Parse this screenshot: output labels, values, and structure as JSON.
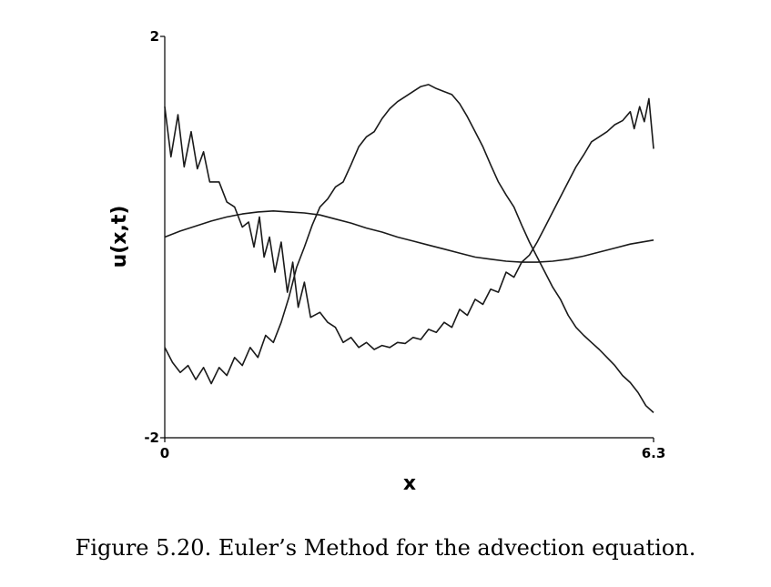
{
  "caption": "Figure 5.20. Euler’s Method for the advection equation.",
  "chart_data": {
    "type": "line",
    "xlabel": "x",
    "ylabel": "u(x,t)",
    "xlim": [
      0,
      6.3
    ],
    "ylim": [
      -2,
      2
    ],
    "x_tick_labels": [
      "0",
      "6.3"
    ],
    "y_tick_labels": [
      "2",
      "-2"
    ],
    "x_ticks": [
      0,
      6.3
    ],
    "y_ticks": [
      2,
      -2
    ],
    "grid": false,
    "series": [
      {
        "points": [
          [
            0,
            0.0
          ],
          [
            0.2,
            0.06
          ],
          [
            0.4,
            0.11
          ],
          [
            0.6,
            0.16
          ],
          [
            0.8,
            0.2
          ],
          [
            1.0,
            0.23
          ],
          [
            1.2,
            0.25
          ],
          [
            1.4,
            0.26
          ],
          [
            1.6,
            0.25
          ],
          [
            1.8,
            0.24
          ],
          [
            2.0,
            0.22
          ],
          [
            2.2,
            0.18
          ],
          [
            2.4,
            0.14
          ],
          [
            2.6,
            0.09
          ],
          [
            2.8,
            0.05
          ],
          [
            3.0,
            0.0
          ],
          [
            3.2,
            -0.04
          ],
          [
            3.4,
            -0.08
          ],
          [
            3.6,
            -0.12
          ],
          [
            3.8,
            -0.16
          ],
          [
            4.0,
            -0.2
          ],
          [
            4.2,
            -0.22
          ],
          [
            4.4,
            -0.24
          ],
          [
            4.6,
            -0.25
          ],
          [
            4.8,
            -0.25
          ],
          [
            5.0,
            -0.24
          ],
          [
            5.2,
            -0.22
          ],
          [
            5.4,
            -0.19
          ],
          [
            5.6,
            -0.15
          ],
          [
            5.8,
            -0.11
          ],
          [
            6.0,
            -0.07
          ],
          [
            6.3,
            -0.03
          ]
        ]
      },
      {
        "points": [
          [
            0,
            1.3
          ],
          [
            0.08,
            0.8
          ],
          [
            0.17,
            1.22
          ],
          [
            0.25,
            0.7
          ],
          [
            0.34,
            1.05
          ],
          [
            0.42,
            0.68
          ],
          [
            0.5,
            0.85
          ],
          [
            0.58,
            0.55
          ],
          [
            0.7,
            0.55
          ],
          [
            0.8,
            0.35
          ],
          [
            0.9,
            0.3
          ],
          [
            1.0,
            0.1
          ],
          [
            1.08,
            0.15
          ],
          [
            1.15,
            -0.1
          ],
          [
            1.22,
            0.2
          ],
          [
            1.28,
            -0.2
          ],
          [
            1.35,
            0.0
          ],
          [
            1.42,
            -0.35
          ],
          [
            1.5,
            -0.05
          ],
          [
            1.58,
            -0.55
          ],
          [
            1.65,
            -0.25
          ],
          [
            1.72,
            -0.7
          ],
          [
            1.8,
            -0.45
          ],
          [
            1.88,
            -0.8
          ],
          [
            2.0,
            -0.75
          ],
          [
            2.1,
            -0.85
          ],
          [
            2.2,
            -0.9
          ],
          [
            2.3,
            -1.05
          ],
          [
            2.4,
            -1.0
          ],
          [
            2.5,
            -1.1
          ],
          [
            2.6,
            -1.05
          ],
          [
            2.7,
            -1.12
          ],
          [
            2.8,
            -1.08
          ],
          [
            2.9,
            -1.1
          ],
          [
            3.0,
            -1.05
          ],
          [
            3.1,
            -1.06
          ],
          [
            3.2,
            -1.0
          ],
          [
            3.3,
            -1.02
          ],
          [
            3.4,
            -0.92
          ],
          [
            3.5,
            -0.95
          ],
          [
            3.6,
            -0.85
          ],
          [
            3.7,
            -0.9
          ],
          [
            3.8,
            -0.72
          ],
          [
            3.9,
            -0.78
          ],
          [
            4.0,
            -0.62
          ],
          [
            4.1,
            -0.67
          ],
          [
            4.2,
            -0.52
          ],
          [
            4.3,
            -0.55
          ],
          [
            4.4,
            -0.35
          ],
          [
            4.5,
            -0.4
          ],
          [
            4.6,
            -0.25
          ],
          [
            4.7,
            -0.18
          ],
          [
            4.8,
            -0.05
          ],
          [
            4.9,
            0.1
          ],
          [
            5.0,
            0.25
          ],
          [
            5.1,
            0.4
          ],
          [
            5.2,
            0.55
          ],
          [
            5.3,
            0.7
          ],
          [
            5.4,
            0.82
          ],
          [
            5.5,
            0.95
          ],
          [
            5.6,
            1.0
          ],
          [
            5.7,
            1.05
          ],
          [
            5.8,
            1.12
          ],
          [
            5.9,
            1.16
          ],
          [
            6.0,
            1.25
          ],
          [
            6.05,
            1.08
          ],
          [
            6.12,
            1.3
          ],
          [
            6.18,
            1.15
          ],
          [
            6.24,
            1.38
          ],
          [
            6.3,
            0.88
          ]
        ]
      },
      {
        "points": [
          [
            0,
            -1.1
          ],
          [
            0.1,
            -1.25
          ],
          [
            0.2,
            -1.35
          ],
          [
            0.3,
            -1.28
          ],
          [
            0.4,
            -1.42
          ],
          [
            0.5,
            -1.3
          ],
          [
            0.6,
            -1.46
          ],
          [
            0.7,
            -1.3
          ],
          [
            0.8,
            -1.38
          ],
          [
            0.9,
            -1.2
          ],
          [
            1.0,
            -1.28
          ],
          [
            1.1,
            -1.1
          ],
          [
            1.2,
            -1.2
          ],
          [
            1.3,
            -0.98
          ],
          [
            1.4,
            -1.05
          ],
          [
            1.5,
            -0.85
          ],
          [
            1.6,
            -0.6
          ],
          [
            1.7,
            -0.3
          ],
          [
            1.8,
            -0.1
          ],
          [
            1.9,
            0.12
          ],
          [
            2.0,
            0.3
          ],
          [
            2.1,
            0.38
          ],
          [
            2.2,
            0.5
          ],
          [
            2.3,
            0.55
          ],
          [
            2.4,
            0.72
          ],
          [
            2.5,
            0.9
          ],
          [
            2.6,
            1.0
          ],
          [
            2.7,
            1.05
          ],
          [
            2.8,
            1.18
          ],
          [
            2.9,
            1.28
          ],
          [
            3.0,
            1.35
          ],
          [
            3.1,
            1.4
          ],
          [
            3.2,
            1.45
          ],
          [
            3.3,
            1.5
          ],
          [
            3.4,
            1.52
          ],
          [
            3.5,
            1.48
          ],
          [
            3.6,
            1.45
          ],
          [
            3.7,
            1.42
          ],
          [
            3.8,
            1.33
          ],
          [
            3.9,
            1.2
          ],
          [
            4.0,
            1.05
          ],
          [
            4.1,
            0.9
          ],
          [
            4.2,
            0.72
          ],
          [
            4.3,
            0.55
          ],
          [
            4.4,
            0.42
          ],
          [
            4.5,
            0.3
          ],
          [
            4.6,
            0.12
          ],
          [
            4.7,
            -0.05
          ],
          [
            4.8,
            -0.2
          ],
          [
            4.9,
            -0.35
          ],
          [
            5.0,
            -0.5
          ],
          [
            5.1,
            -0.62
          ],
          [
            5.2,
            -0.78
          ],
          [
            5.3,
            -0.9
          ],
          [
            5.4,
            -0.98
          ],
          [
            5.5,
            -1.05
          ],
          [
            5.6,
            -1.12
          ],
          [
            5.7,
            -1.2
          ],
          [
            5.8,
            -1.28
          ],
          [
            5.9,
            -1.38
          ],
          [
            6.0,
            -1.45
          ],
          [
            6.1,
            -1.55
          ],
          [
            6.2,
            -1.68
          ],
          [
            6.3,
            -1.75
          ]
        ]
      }
    ]
  }
}
